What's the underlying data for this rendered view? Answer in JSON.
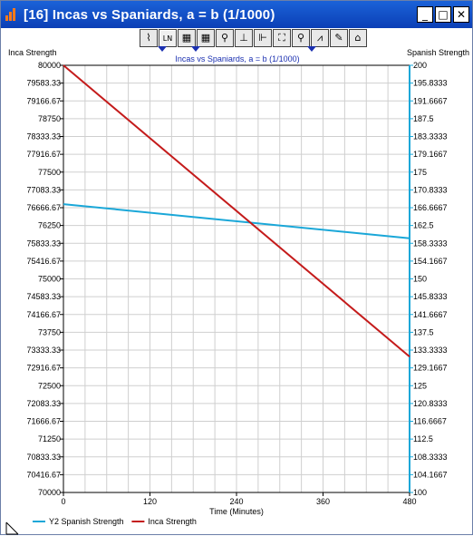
{
  "window": {
    "title": "[16]  Incas vs Spaniards, a = b (1/1000)",
    "buttons": {
      "minimize": "_",
      "maximize": "□",
      "close": "✕"
    }
  },
  "toolbar": {
    "tools": [
      {
        "name": "graph-tool",
        "glyph": "⌇"
      },
      {
        "name": "ln-tool",
        "glyph": "LN"
      },
      {
        "name": "table-tool",
        "glyph": "▦"
      },
      {
        "name": "grid-tool",
        "glyph": "▦"
      },
      {
        "name": "pin-tool",
        "glyph": "⚲"
      },
      {
        "name": "axis-tool",
        "glyph": "⊥"
      },
      {
        "name": "scale-tool",
        "glyph": "⊩"
      },
      {
        "name": "zoom-fit-tool",
        "glyph": "⛶"
      },
      {
        "name": "magnify-tool",
        "glyph": "⚲"
      },
      {
        "name": "peak-tool",
        "glyph": "⩘"
      },
      {
        "name": "pencil-tool",
        "glyph": "✎"
      },
      {
        "name": "stamp-tool",
        "glyph": "⌂"
      }
    ]
  },
  "chart_data": {
    "type": "line",
    "title": "Incas vs Spaniards, a = b (1/1000)",
    "xlabel": "Time (Minutes)",
    "xlim": [
      0,
      480
    ],
    "xticks": [
      0,
      120,
      240,
      360,
      480
    ],
    "left_axis": {
      "title": "Inca Strength",
      "ylim": [
        70000,
        80000
      ],
      "tick_labels": [
        "80000",
        "79583.33",
        "79166.67",
        "78750",
        "78333.33",
        "77916.67",
        "77500",
        "77083.33",
        "76666.67",
        "76250",
        "75833.33",
        "75416.67",
        "75000",
        "74583.33",
        "74166.67",
        "73750",
        "73333.33",
        "72916.67",
        "72500",
        "72083.33",
        "71666.67",
        "71250",
        "70833.33",
        "70416.67",
        "70000"
      ]
    },
    "right_axis": {
      "title": "Spanish Strength",
      "ylim": [
        100,
        200
      ],
      "tick_labels": [
        "200",
        "195.8333",
        "191.6667",
        "187.5",
        "183.3333",
        "179.1667",
        "175",
        "170.8333",
        "166.6667",
        "162.5",
        "158.3333",
        "154.1667",
        "150",
        "145.8333",
        "141.6667",
        "137.5",
        "133.3333",
        "129.1667",
        "125",
        "120.8333",
        "116.6667",
        "112.5",
        "108.3333",
        "104.1667",
        "100"
      ]
    },
    "grid": true,
    "legend_position": "bottom-left",
    "series": [
      {
        "name": "Y2 Spanish Strength",
        "axis": "right",
        "color": "#1aa7d8",
        "x": [
          0,
          480
        ],
        "y": [
          167.5,
          159.5
        ]
      },
      {
        "name": "Inca Strength",
        "axis": "left",
        "color": "#c41b1b",
        "x": [
          0,
          480
        ],
        "y": [
          80000,
          73180
        ]
      }
    ]
  }
}
